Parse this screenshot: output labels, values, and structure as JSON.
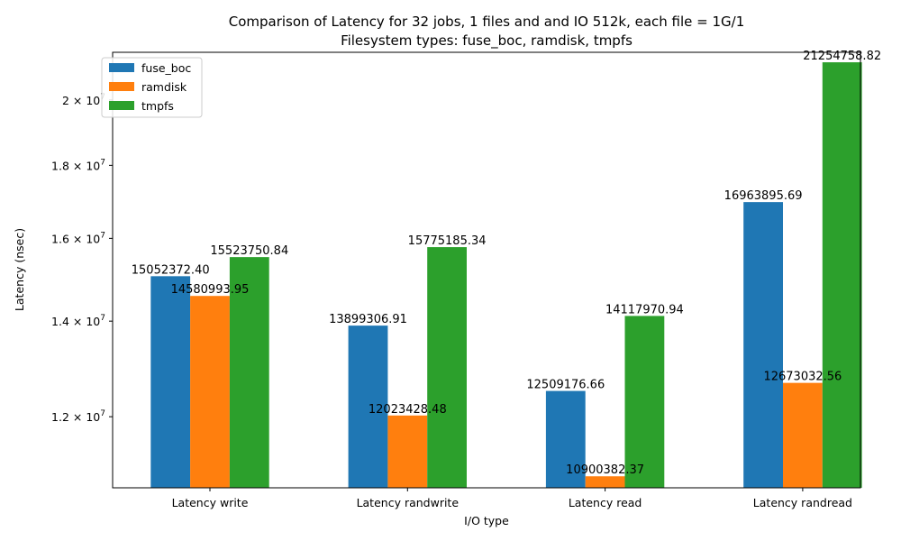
{
  "chart_data": {
    "type": "bar",
    "title": "Comparison of Latency for 32 jobs, 1 files and  and IO 512k, each file = 1G/1",
    "subtitle": "Filesystem types: fuse_boc, ramdisk, tmpfs",
    "xlabel": "I/O type",
    "ylabel": "Latency (nsec)",
    "yscale": "log",
    "ylim": [
      10700000,
      21600000
    ],
    "yticks": [
      {
        "value": 12000000,
        "mantissa": "1.2",
        "exp": "7"
      },
      {
        "value": 14000000,
        "mantissa": "1.4",
        "exp": "7"
      },
      {
        "value": 16000000,
        "mantissa": "1.6",
        "exp": "7"
      },
      {
        "value": 18000000,
        "mantissa": "1.8",
        "exp": "7"
      },
      {
        "value": 20000000,
        "mantissa": "2",
        "exp": "7"
      }
    ],
    "categories": [
      "Latency write",
      "Latency randwrite",
      "Latency read",
      "Latency randread"
    ],
    "series": [
      {
        "name": "fuse_boc",
        "color": "#1f77b4",
        "values": [
          15052372.4,
          13899306.91,
          12509176.66,
          16963895.69
        ],
        "labels": [
          "15052372.40",
          "13899306.91",
          "12509176.66",
          "16963895.69"
        ]
      },
      {
        "name": "ramdisk",
        "color": "#ff7f0e",
        "values": [
          14580993.95,
          12023428.48,
          10900382.37,
          12673032.56
        ],
        "labels": [
          "14580993.95",
          "12023428.48",
          "10900382.37",
          "12673032.56"
        ]
      },
      {
        "name": "tmpfs",
        "color": "#2ca02c",
        "values": [
          15523750.84,
          15775185.34,
          14117970.94,
          21254758.82
        ],
        "labels": [
          "15523750.84",
          "15775185.34",
          "14117970.94",
          "21254758.82"
        ]
      }
    ],
    "legend_position": "top-left",
    "grid": false
  }
}
